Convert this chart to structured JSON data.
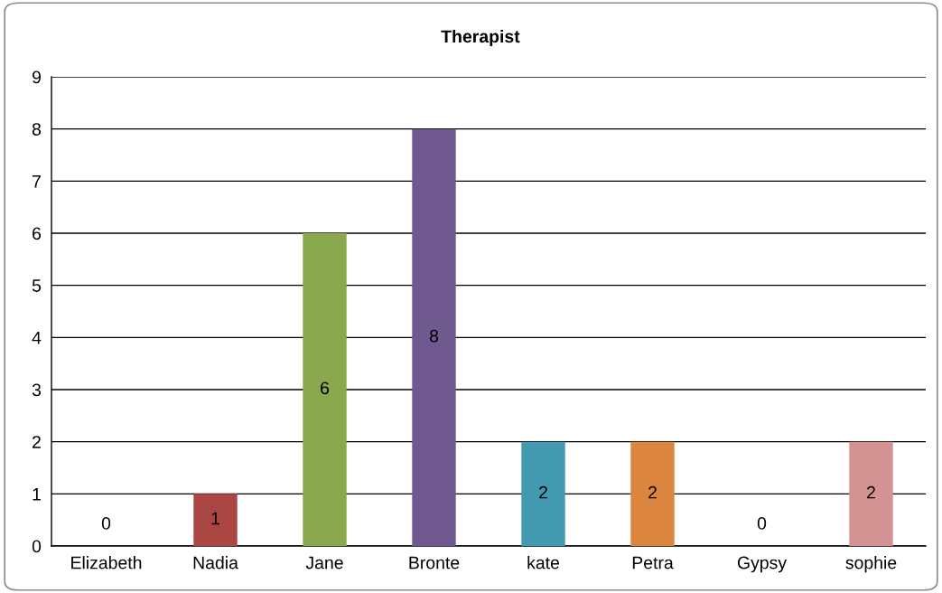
{
  "chart_data": {
    "type": "bar",
    "title": "Therapist",
    "categories": [
      "Elizabeth",
      "Nadia",
      "Jane",
      "Bronte",
      "kate",
      "Petra",
      "Gypsy",
      "sophie"
    ],
    "values": [
      0,
      1,
      6,
      8,
      2,
      2,
      0,
      2
    ],
    "colors": [
      "#4f81bd",
      "#aa4644",
      "#8aa84d",
      "#70598f",
      "#4299b0",
      "#dc853f",
      "#7f7f7f",
      "#d39392"
    ],
    "ylim": [
      0,
      9
    ],
    "yticks": [
      0,
      1,
      2,
      3,
      4,
      5,
      6,
      7,
      8,
      9
    ],
    "grid": "y",
    "data_labels": true
  }
}
